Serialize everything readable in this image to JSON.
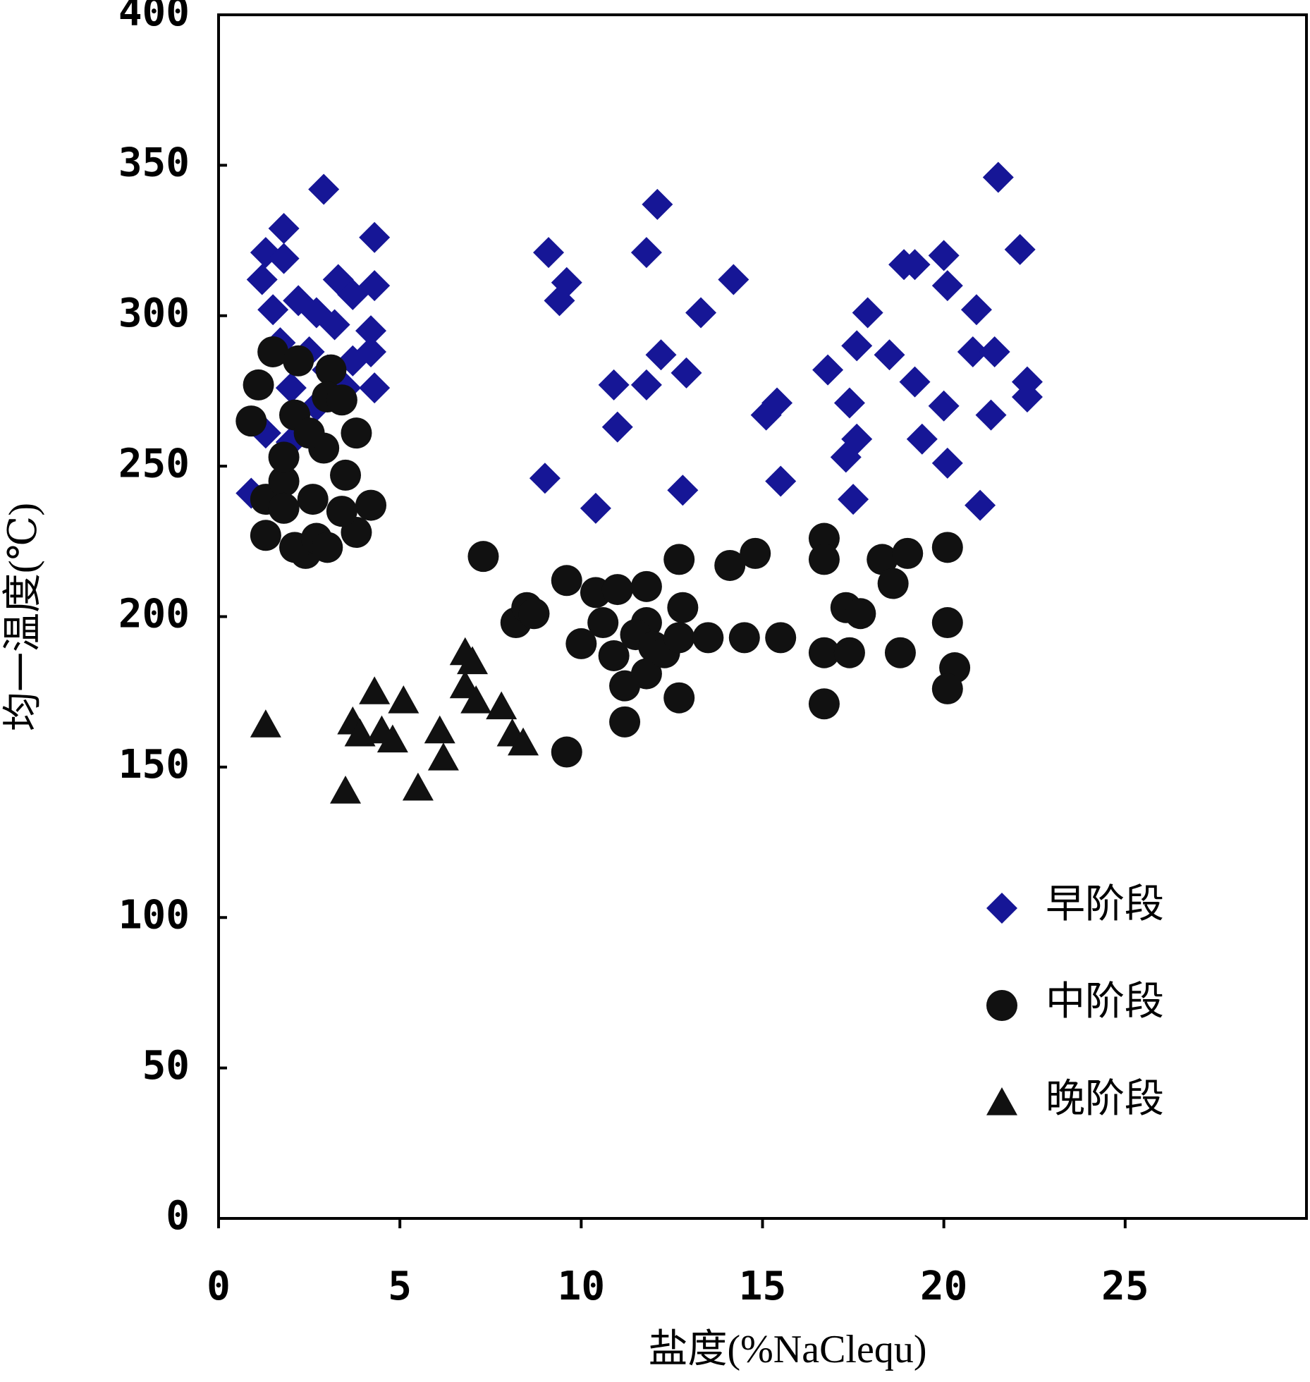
{
  "chart_data": {
    "type": "scatter",
    "x_label": "盐度(%NaClequ)",
    "y_label": "均一温度(℃)",
    "xlim": [
      0,
      30
    ],
    "xticks": [
      0,
      5,
      10,
      15,
      20,
      25
    ],
    "ylim": [
      0,
      400
    ],
    "yticks": [
      0,
      50,
      100,
      150,
      200,
      250,
      300,
      350,
      400
    ],
    "legend": "lower right",
    "series": [
      {
        "name": "早阶段",
        "color": "#161696",
        "marker": "diamond",
        "x": [
          0.9,
          1.3,
          1.2,
          1.8,
          1.8,
          2.9,
          4.3,
          4.3,
          4.3,
          4.2,
          4.2,
          3.3,
          3.7,
          1.5,
          2.2,
          2.7,
          3.2,
          1.7,
          2.5,
          3.0,
          3.7,
          2.0,
          2.7,
          2.0,
          1.3,
          3.5,
          9.1,
          9.4,
          9.6,
          9.0,
          10.4,
          10.9,
          11.0,
          11.8,
          11.8,
          12.1,
          12.2,
          12.8,
          12.9,
          13.3,
          14.2,
          15.1,
          15.4,
          15.5,
          16.8,
          17.4,
          17.3,
          17.6,
          17.5,
          17.6,
          17.9,
          18.5,
          18.9,
          19.2,
          19.2,
          19.4,
          20.0,
          20.1,
          20.0,
          20.1,
          20.9,
          20.8,
          21.4,
          21.3,
          21.0,
          21.5,
          22.1,
          22.3,
          22.3
        ],
        "values": [
          241,
          321,
          312,
          329,
          319,
          342,
          326,
          310,
          276,
          288,
          295,
          312,
          307,
          302,
          305,
          301,
          297,
          291,
          288,
          282,
          285,
          276,
          270,
          258,
          261,
          276,
          321,
          305,
          311,
          246,
          236,
          277,
          263,
          321,
          277,
          337,
          287,
          242,
          281,
          301,
          312,
          267,
          271,
          245,
          282,
          271,
          253,
          259,
          239,
          290,
          301,
          287,
          317,
          317,
          278,
          259,
          320,
          310,
          270,
          251,
          302,
          288,
          288,
          267,
          237,
          346,
          322,
          278,
          273
        ]
      },
      {
        "name": "中阶段",
        "color": "#111111",
        "marker": "circle",
        "x": [
          0.9,
          1.1,
          1.5,
          1.3,
          1.3,
          1.8,
          1.8,
          1.8,
          2.2,
          2.1,
          2.4,
          2.1,
          2.7,
          3.0,
          2.6,
          2.9,
          3.1,
          3.0,
          3.4,
          3.5,
          3.8,
          3.8,
          4.2,
          3.4,
          2.5,
          7.3,
          8.2,
          8.5,
          8.7,
          9.6,
          10.0,
          10.4,
          10.6,
          11.0,
          10.9,
          11.2,
          11.2,
          11.8,
          11.8,
          11.5,
          12.0,
          11.8,
          12.3,
          12.7,
          12.8,
          12.7,
          12.7,
          13.5,
          14.1,
          14.8,
          14.5,
          15.5,
          16.7,
          16.7,
          16.7,
          16.7,
          17.3,
          17.4,
          17.7,
          18.3,
          19.0,
          18.6,
          18.8,
          20.1,
          20.1,
          20.3,
          20.1,
          9.6
        ],
        "values": [
          265,
          277,
          288,
          239,
          227,
          245,
          236,
          253,
          285,
          267,
          221,
          223,
          226,
          223,
          239,
          256,
          282,
          273,
          272,
          247,
          261,
          228,
          237,
          235,
          261,
          220,
          198,
          203,
          201,
          212,
          191,
          208,
          198,
          209,
          187,
          177,
          165,
          210,
          198,
          194,
          190,
          181,
          188,
          219,
          203,
          193,
          173,
          193,
          217,
          221,
          193,
          193,
          226,
          219,
          188,
          171,
          203,
          188,
          201,
          219,
          221,
          211,
          188,
          223,
          198,
          183,
          176,
          155
        ]
      },
      {
        "name": "晚阶段",
        "color": "#111111",
        "marker": "triangle",
        "x": [
          1.3,
          3.5,
          3.7,
          3.9,
          4.3,
          4.5,
          4.8,
          5.1,
          5.5,
          6.1,
          6.2,
          6.8,
          6.8,
          7.0,
          7.1,
          7.8,
          8.1,
          8.4
        ],
        "values": [
          164,
          142,
          165,
          161,
          175,
          162,
          159,
          172,
          143,
          162,
          153,
          188,
          177,
          185,
          172,
          170,
          161,
          158
        ]
      }
    ]
  }
}
